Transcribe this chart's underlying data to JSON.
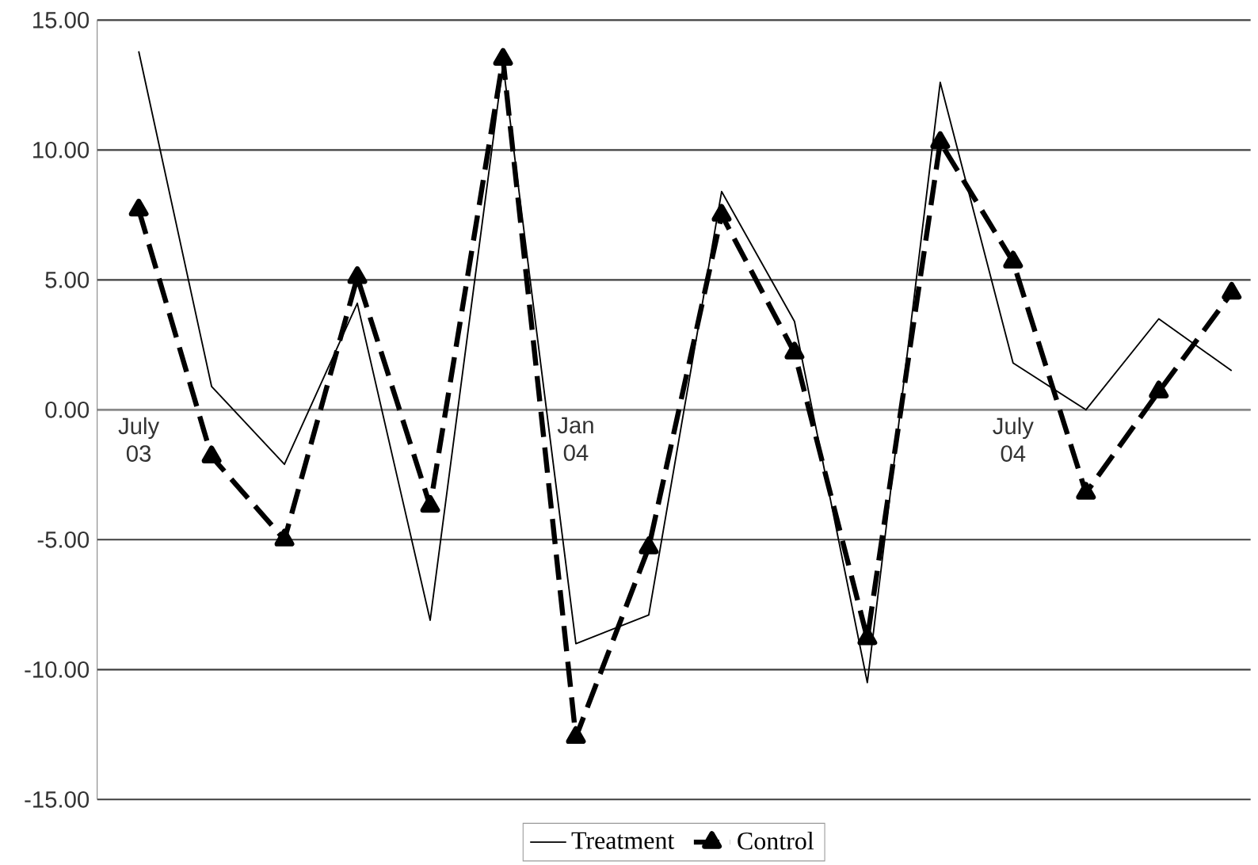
{
  "chart_data": {
    "type": "line",
    "categories": [
      "July 03",
      null,
      null,
      null,
      null,
      null,
      "Jan 04",
      null,
      null,
      null,
      null,
      null,
      "July 04",
      null,
      null,
      null
    ],
    "series": [
      {
        "name": "Treatment",
        "color": "#000000",
        "line_style": "solid",
        "marker": "none",
        "values": [
          13.8,
          0.9,
          -2.1,
          4.1,
          -8.1,
          13.3,
          -9.0,
          -7.9,
          8.4,
          3.4,
          -10.5,
          12.6,
          1.8,
          0.0,
          3.5,
          1.5
        ]
      },
      {
        "name": "Control",
        "color": "#000000",
        "line_style": "dashed",
        "marker": "triangle",
        "values": [
          7.7,
          -1.8,
          -5.0,
          5.1,
          -3.7,
          13.5,
          -12.6,
          -5.3,
          7.5,
          2.2,
          -8.8,
          10.3,
          5.7,
          -3.2,
          0.7,
          4.5
        ]
      }
    ],
    "ylim": [
      -15,
      15
    ],
    "yticks": [
      {
        "value": -15,
        "label": "-15.00"
      },
      {
        "value": -10,
        "label": "-10.00"
      },
      {
        "value": -5,
        "label": "-5.00"
      },
      {
        "value": 0,
        "label": "0.00"
      },
      {
        "value": 5,
        "label": "5.00"
      },
      {
        "value": 10,
        "label": "10.00"
      },
      {
        "value": 15,
        "label": "15.00"
      }
    ],
    "grid": "y",
    "legend": "bottom"
  }
}
